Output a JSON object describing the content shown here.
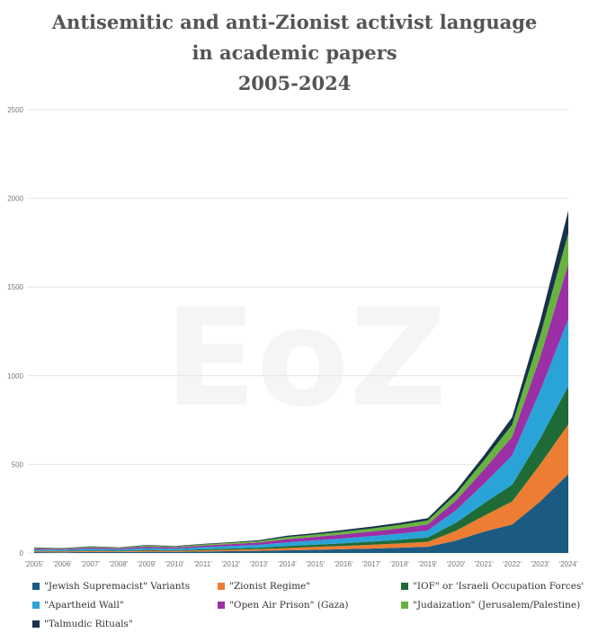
{
  "watermark": "EoZ",
  "chart_data": {
    "type": "area",
    "stacked": true,
    "title": [
      "Antisemitic and anti-Zionist activist language",
      "in academic papers",
      "2005-2024"
    ],
    "xlabel": "",
    "ylabel": "",
    "ylim": [
      0,
      2500
    ],
    "yticks": [
      "0",
      "500",
      "1000",
      "1500",
      "2000",
      "2500"
    ],
    "x": [
      "'2005'",
      "'2006'",
      "'2007'",
      "'2008'",
      "'2009'",
      "'2010'",
      "'2011'",
      "'2012'",
      "'2013'",
      "'2014'",
      "'2015'",
      "'2016'",
      "'2017'",
      "'2018'",
      "'2019'",
      "'2020'",
      "'2021'",
      "'2022'",
      "'2023'",
      "'2024'"
    ],
    "grid": true,
    "legend_position": "bottom",
    "series": [
      {
        "name": "\"Jewish Supremacist\" Variants",
        "color": "#1b5b82",
        "values": [
          5,
          4,
          6,
          5,
          7,
          6,
          8,
          10,
          12,
          15,
          18,
          22,
          25,
          30,
          35,
          70,
          120,
          160,
          290,
          445
        ]
      },
      {
        "name": "\"Zionist Regime\"",
        "color": "#ec7d32",
        "values": [
          4,
          4,
          5,
          4,
          6,
          5,
          7,
          8,
          10,
          13,
          16,
          18,
          21,
          24,
          28,
          55,
          90,
          130,
          210,
          280
        ]
      },
      {
        "name": "\"IOF\" or 'Israeli Occupation Forces'",
        "color": "#1e6b36",
        "values": [
          3,
          3,
          4,
          3,
          5,
          4,
          6,
          7,
          8,
          11,
          13,
          15,
          18,
          20,
          24,
          45,
          70,
          95,
          145,
          215
        ]
      },
      {
        "name": "\"Apartheid Wall\"",
        "color": "#29a3d8",
        "values": [
          8,
          7,
          9,
          8,
          10,
          9,
          12,
          14,
          16,
          21,
          24,
          27,
          31,
          35,
          40,
          70,
          110,
          165,
          270,
          380
        ]
      },
      {
        "name": "\"Open Air Prison\" (Gaza)",
        "color": "#9b2fa5",
        "values": [
          6,
          5,
          7,
          6,
          8,
          7,
          9,
          11,
          13,
          18,
          20,
          23,
          26,
          30,
          34,
          55,
          80,
          105,
          190,
          310
        ]
      },
      {
        "name": "\"Judaization\" (Jerusalem/Palestine)",
        "color": "#66b43e",
        "values": [
          4,
          3,
          5,
          4,
          6,
          5,
          6,
          7,
          8,
          12,
          13,
          15,
          17,
          19,
          22,
          35,
          52,
          68,
          120,
          175
        ]
      },
      {
        "name": "\"Talmudic Rituals\"",
        "color": "#17324a",
        "values": [
          2,
          2,
          2,
          2,
          3,
          3,
          3,
          4,
          5,
          8,
          8,
          10,
          11,
          12,
          13,
          20,
          28,
          42,
          82,
          125
        ]
      }
    ]
  }
}
